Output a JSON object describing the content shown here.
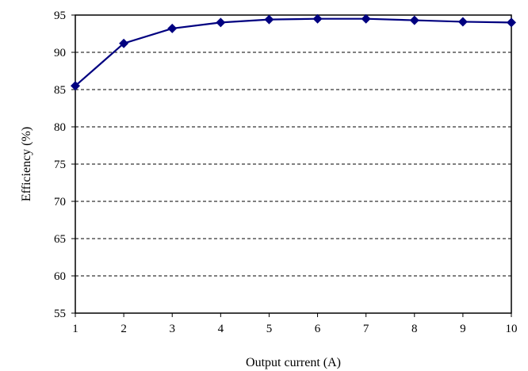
{
  "chart_data": {
    "type": "line",
    "xlabel": "Output current (A)",
    "ylabel": "Efficiency (%)",
    "x": [
      1,
      2,
      3,
      4,
      5,
      6,
      7,
      8,
      9,
      10
    ],
    "xlim": [
      1,
      10
    ],
    "ylim": [
      55,
      95
    ],
    "xticks": [
      1,
      2,
      3,
      4,
      5,
      6,
      7,
      8,
      9,
      10
    ],
    "yticks": [
      55,
      60,
      65,
      70,
      75,
      80,
      85,
      90,
      95
    ],
    "grid": "horizontal dashed",
    "legend": "none",
    "series": [
      {
        "values": [
          85.5,
          91.2,
          93.2,
          94.0,
          94.4,
          94.5,
          94.5,
          94.3,
          94.1,
          94.0
        ],
        "color": "#000080",
        "marker": "diamond"
      }
    ]
  }
}
